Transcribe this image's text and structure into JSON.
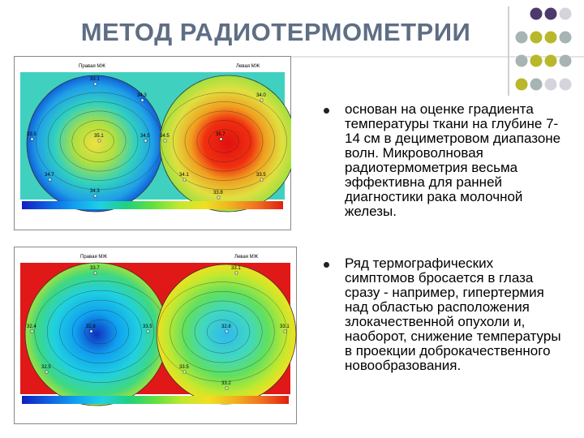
{
  "title": "МЕТОД РАДИОТЕРМОМЕТРИИ",
  "images": [
    {
      "left_label": "Правая МЖ",
      "right_label": "Левая МЖ",
      "points": [
        "33.1",
        "34.3",
        "33.5",
        "35.1",
        "34.5",
        "34.7",
        "34.3",
        "34.0",
        "34.5",
        "35.7",
        "33.5",
        "34.1",
        "33.8"
      ]
    },
    {
      "left_label": "Правая МЖ",
      "right_label": "Левая МЖ",
      "points": [
        "33.7",
        "32.4",
        "32.8",
        "33.5",
        "32.5",
        "33.1",
        "33.1",
        "32.8",
        "33.5",
        "33.2"
      ]
    }
  ],
  "bullets": [
    "основан на оценке градиента температуры ткани на глубине 7-14 см в дециметровом диапазоне волн. Микроволновая радиотермометрия весьма эффективна для ранней диагностики рака молочной железы.",
    "Ряд термографических симптомов бросается в глаза сразу - например, гипертермия над областью расположения злокачественной опухоли и, наоборот, снижение температуры в проекции доброкачественного новообразования."
  ]
}
